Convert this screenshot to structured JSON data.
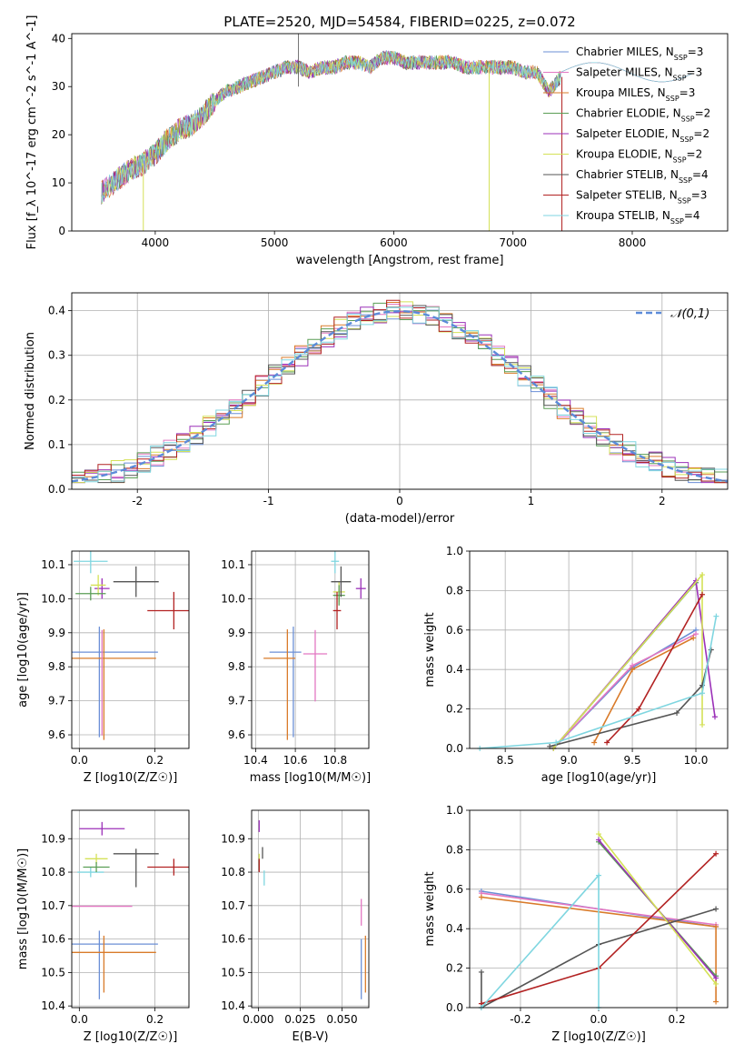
{
  "figure": {
    "title": "PLATE=2520, MJD=54584, FIBERID=0225, z=0.072"
  },
  "chart_data": [
    {
      "id": "spectrum",
      "type": "line",
      "xlabel": "wavelength [Angstrom, rest frame]",
      "ylabel": "Flux [f_λ 10^-17 erg cm^-2 s^-1 A^-1]",
      "xlim": [
        3300,
        8800
      ],
      "ylim": [
        0,
        41
      ],
      "xticks": [
        4000,
        5000,
        6000,
        7000,
        8000
      ],
      "yticks": [
        0,
        10,
        20,
        30,
        40
      ],
      "grid": false,
      "legend_position": "top-right",
      "continuum_x": [
        3550,
        3600,
        3700,
        3800,
        3900,
        4000,
        4100,
        4200,
        4300,
        4400,
        4500,
        4600,
        4700,
        4800,
        4900,
        5000,
        5100,
        5200,
        5300,
        5400,
        5500,
        5600,
        5700,
        5800,
        5900,
        6000,
        6100,
        6200,
        6300,
        6400,
        6500,
        6600,
        6700,
        6800,
        6900,
        7000,
        7100,
        7200,
        7300,
        7400
      ],
      "continuum_y": [
        8,
        9,
        11,
        13,
        14,
        16,
        19,
        21,
        22,
        24,
        27,
        29,
        30,
        31,
        32,
        33,
        34,
        34,
        33,
        34,
        34,
        35,
        35,
        34,
        36,
        36,
        35,
        35,
        35,
        35,
        35,
        34,
        34,
        34,
        34,
        34,
        33,
        33,
        29,
        32
      ],
      "series": [
        {
          "name": "Chabrier MILES, N_SSP=3",
          "color": "#6b8fd6"
        },
        {
          "name": "Salpeter MILES, N_SSP=3",
          "color": "#e377c2"
        },
        {
          "name": "Kroupa MILES, N_SSP=3",
          "color": "#d97b2a"
        },
        {
          "name": "Chabrier ELODIE, N_SSP=2",
          "color": "#5a9e55"
        },
        {
          "name": "Salpeter ELODIE, N_SSP=2",
          "color": "#9b30b8"
        },
        {
          "name": "Kroupa ELODIE, N_SSP=2",
          "color": "#d4e157"
        },
        {
          "name": "Chabrier STELIB, N_SSP=4",
          "color": "#555555"
        },
        {
          "name": "Salpeter STELIB, N_SSP=3",
          "color": "#b22222"
        },
        {
          "name": "Kroupa STELIB, N_SSP=4",
          "color": "#7fd6e0"
        }
      ]
    },
    {
      "id": "residuals",
      "type": "line",
      "xlabel": "(data-model)/error",
      "ylabel": "Normed distribution",
      "xlim": [
        -2.5,
        2.5
      ],
      "ylim": [
        0,
        0.44
      ],
      "xticks": [
        -2,
        -1,
        0,
        1,
        2
      ],
      "yticks": [
        0.0,
        0.1,
        0.2,
        0.3,
        0.4
      ],
      "grid": true,
      "legend_position": "top-right",
      "reference_curve": {
        "name": "𝒩(0,1)",
        "mean": 0,
        "sigma": 1,
        "color": "#5b8bd9"
      },
      "bin_width": 0.1
    },
    {
      "id": "age-vs-Z",
      "type": "scatter",
      "xlabel": "Z [log10(Z/Z☉)]",
      "ylabel": "age [log10(age/yr)]",
      "xlim": [
        -0.02,
        0.29
      ],
      "ylim": [
        9.56,
        10.14
      ],
      "xticks": [
        0.0,
        0.2
      ],
      "yticks": [
        9.6,
        9.7,
        9.8,
        9.9,
        10.0,
        10.1
      ],
      "grid": true,
      "points": [
        {
          "x": 0.053,
          "y": 9.843,
          "xerr": 0.155,
          "yerr": 0.075,
          "yerr_low": 0.25,
          "color": "#6b8fd6"
        },
        {
          "x": 0.065,
          "y": 9.825,
          "xerr": 0.138,
          "yerr": 0.085,
          "yerr_low": 0.24,
          "color": "#d97b2a"
        },
        {
          "x": 0.06,
          "y": 9.838,
          "xerr": 0.0,
          "yerr": 0.07,
          "yerr_low": 0.24,
          "color": "#e377c2"
        },
        {
          "x": 0.03,
          "y": 10.11,
          "xerr": 0.045,
          "yerr": 0.035,
          "color": "#7fd6e0"
        },
        {
          "x": 0.06,
          "y": 10.03,
          "xerr": 0.02,
          "yerr": 0.03,
          "color": "#9b30b8"
        },
        {
          "x": 0.05,
          "y": 10.04,
          "xerr": 0.02,
          "yerr": 0.03,
          "color": "#d4e157"
        },
        {
          "x": 0.03,
          "y": 10.015,
          "xerr": 0.04,
          "yerr": 0.02,
          "color": "#5a9e55"
        },
        {
          "x": 0.15,
          "y": 10.05,
          "xerr": 0.06,
          "yerr": 0.045,
          "color": "#555555"
        },
        {
          "x": 0.25,
          "y": 9.965,
          "xerr": 0.07,
          "yerr": 0.055,
          "color": "#b22222"
        }
      ]
    },
    {
      "id": "age-vs-mass",
      "type": "scatter",
      "xlabel": "mass [log10(M/M☉)]",
      "ylabel": "",
      "xlim": [
        10.38,
        10.97
      ],
      "ylim": [
        9.56,
        10.14
      ],
      "xticks": [
        10.4,
        10.6,
        10.8
      ],
      "yticks": [
        9.6,
        9.7,
        9.8,
        9.9,
        10.0,
        10.1
      ],
      "grid": true,
      "points": [
        {
          "x": 10.59,
          "y": 9.843,
          "xerr": 0.12,
          "xerr_high": 0.04,
          "yerr": 0.075,
          "yerr_low": 0.25,
          "color": "#6b8fd6"
        },
        {
          "x": 10.56,
          "y": 9.825,
          "xerr": 0.12,
          "xerr_high": 0.04,
          "yerr": 0.085,
          "yerr_low": 0.24,
          "color": "#d97b2a"
        },
        {
          "x": 10.7,
          "y": 9.838,
          "xerr": 0.06,
          "yerr": 0.07,
          "yerr_low": 0.14,
          "color": "#e377c2"
        },
        {
          "x": 10.8,
          "y": 10.11,
          "xerr": 0.02,
          "yerr": 0.035,
          "color": "#7fd6e0"
        },
        {
          "x": 10.93,
          "y": 10.03,
          "xerr": 0.025,
          "yerr": 0.03,
          "color": "#9b30b8"
        },
        {
          "x": 10.82,
          "y": 10.02,
          "xerr": 0.03,
          "yerr": 0.03,
          "color": "#d4e157"
        },
        {
          "x": 10.82,
          "y": 10.01,
          "xerr": 0.03,
          "yerr": 0.03,
          "color": "#5a9e55"
        },
        {
          "x": 10.83,
          "y": 10.05,
          "xerr": 0.05,
          "yerr": 0.045,
          "color": "#555555"
        },
        {
          "x": 10.81,
          "y": 9.965,
          "xerr": 0.02,
          "yerr": 0.055,
          "color": "#b22222"
        }
      ]
    },
    {
      "id": "mass-weight-vs-age",
      "type": "line",
      "xlabel": "age [log10(age/yr)]",
      "ylabel": "mass weight",
      "xlim": [
        8.22,
        10.25
      ],
      "ylim": [
        0,
        1.0
      ],
      "xticks": [
        8.5,
        9.0,
        9.5,
        10.0
      ],
      "yticks": [
        0.0,
        0.2,
        0.4,
        0.6,
        0.8,
        1.0
      ],
      "grid": true,
      "series": [
        {
          "color": "#6b8fd6",
          "x": [
            8.88,
            9.5,
            10.0
          ],
          "y": [
            0.0,
            0.41,
            0.6
          ]
        },
        {
          "color": "#e377c2",
          "x": [
            8.88,
            9.5,
            10.0
          ],
          "y": [
            0.0,
            0.42,
            0.58
          ]
        },
        {
          "color": "#d97b2a",
          "x": [
            9.2,
            9.5,
            9.98
          ],
          "y": [
            0.03,
            0.4,
            0.56
          ]
        },
        {
          "color": "#5a9e55",
          "x": [
            8.88,
            10.0
          ],
          "y": [
            0.0,
            0.84
          ]
        },
        {
          "color": "#9b30b8",
          "x": [
            8.88,
            10.0,
            10.15
          ],
          "y": [
            0.0,
            0.85,
            0.16
          ]
        },
        {
          "color": "#d4e157",
          "x": [
            8.88,
            10.05,
            10.05
          ],
          "y": [
            0.0,
            0.88,
            0.12
          ]
        },
        {
          "color": "#555555",
          "x": [
            8.85,
            9.85,
            10.05,
            10.12
          ],
          "y": [
            0.01,
            0.18,
            0.32,
            0.5
          ]
        },
        {
          "color": "#b22222",
          "x": [
            9.3,
            9.55,
            10.05
          ],
          "y": [
            0.03,
            0.2,
            0.78
          ]
        },
        {
          "color": "#7fd6e0",
          "x": [
            8.3,
            8.9,
            10.05,
            10.16
          ],
          "y": [
            0.0,
            0.03,
            0.28,
            0.67
          ]
        }
      ]
    },
    {
      "id": "mass-vs-Z",
      "type": "scatter",
      "xlabel": "Z [log10(Z/Z☉)]",
      "ylabel": "mass [log10(M/M☉)]",
      "xlim": [
        -0.02,
        0.29
      ],
      "ylim": [
        10.395,
        10.985
      ],
      "xticks": [
        0.0,
        0.2
      ],
      "yticks": [
        10.4,
        10.5,
        10.6,
        10.7,
        10.8,
        10.9
      ],
      "grid": true,
      "points": [
        {
          "x": 0.053,
          "y": 10.585,
          "xerr": 0.155,
          "yerr": 0.04,
          "yerr_low": 0.165,
          "color": "#6b8fd6"
        },
        {
          "x": 0.065,
          "y": 10.56,
          "xerr": 0.138,
          "yerr": 0.05,
          "yerr_low": 0.12,
          "color": "#d97b2a"
        },
        {
          "x": 0.06,
          "y": 10.698,
          "xerr": 0.08,
          "yerr": 0.0,
          "color": "#e377c2"
        },
        {
          "x": 0.03,
          "y": 10.8,
          "xerr": 0.035,
          "yerr": 0.015,
          "color": "#7fd6e0"
        },
        {
          "x": 0.06,
          "y": 10.93,
          "xerr": 0.06,
          "yerr": 0.02,
          "color": "#9b30b8"
        },
        {
          "x": 0.045,
          "y": 10.84,
          "xerr": 0.03,
          "yerr": 0.015,
          "color": "#d4e157"
        },
        {
          "x": 0.045,
          "y": 10.815,
          "xerr": 0.035,
          "yerr": 0.015,
          "color": "#5a9e55"
        },
        {
          "x": 0.15,
          "y": 10.855,
          "xerr": 0.06,
          "yerr": 0.015,
          "yerr_low": 0.1,
          "color": "#555555"
        },
        {
          "x": 0.25,
          "y": 10.815,
          "xerr": 0.07,
          "yerr": 0.025,
          "color": "#b22222"
        }
      ]
    },
    {
      "id": "mass-vs-EBV",
      "type": "scatter",
      "xlabel": "E(B-V)",
      "ylabel": "",
      "xlim": [
        -0.004,
        0.066
      ],
      "ylim": [
        10.395,
        10.985
      ],
      "xticks": [
        0.0,
        0.025,
        0.05
      ],
      "xticklabels": [
        "0.000",
        "0.025",
        "0.050"
      ],
      "yticks": [
        10.4,
        10.5,
        10.6,
        10.7,
        10.8,
        10.9
      ],
      "grid": true,
      "points": [
        {
          "x": 0.0615,
          "y": 10.56,
          "yerr": 0.04,
          "yerr_low": 0.14,
          "color": "#6b8fd6"
        },
        {
          "x": 0.064,
          "y": 10.52,
          "yerr": 0.09,
          "yerr_low": 0.08,
          "color": "#d97b2a"
        },
        {
          "x": 0.0615,
          "y": 10.64,
          "yerr": 0.08,
          "yerr_low": 0.0,
          "color": "#e377c2"
        },
        {
          "x": 0.0035,
          "y": 10.79,
          "yerr": 0.015,
          "yerr_low": 0.03,
          "color": "#7fd6e0"
        },
        {
          "x": 0.0005,
          "y": 10.93,
          "yerr": 0.025,
          "yerr_low": 0.01,
          "color": "#9b30b8"
        },
        {
          "x": 0.0005,
          "y": 10.84,
          "yerr": 0.015,
          "yerr_low": 0.02,
          "color": "#d4e157"
        },
        {
          "x": 0.0005,
          "y": 10.815,
          "yerr": 0.02,
          "yerr_low": 0.01,
          "color": "#5a9e55"
        },
        {
          "x": 0.0025,
          "y": 10.86,
          "yerr": 0.015,
          "yerr_low": 0.02,
          "color": "#555555"
        },
        {
          "x": 0.0005,
          "y": 10.82,
          "yerr": 0.02,
          "yerr_low": 0.02,
          "color": "#b22222"
        }
      ]
    },
    {
      "id": "mass-weight-vs-Z",
      "type": "line",
      "xlabel": "Z [log10(Z/Z☉)]",
      "ylabel": "mass weight",
      "xlim": [
        -0.33,
        0.33
      ],
      "ylim": [
        0,
        1.0
      ],
      "xticks": [
        -0.2,
        0.0,
        0.2
      ],
      "yticks": [
        0.0,
        0.2,
        0.4,
        0.6,
        0.8,
        1.0
      ],
      "grid": true,
      "series": [
        {
          "color": "#6b8fd6",
          "x": [
            -0.3,
            0.3
          ],
          "y": [
            0.59,
            0.41
          ]
        },
        {
          "color": "#e377c2",
          "x": [
            -0.3,
            0.3
          ],
          "y": [
            0.58,
            0.42
          ]
        },
        {
          "color": "#d97b2a",
          "x": [
            -0.3,
            0.3,
            0.3
          ],
          "y": [
            0.56,
            0.41,
            0.03
          ]
        },
        {
          "color": "#5a9e55",
          "x": [
            0.0,
            0.3
          ],
          "y": [
            0.84,
            0.16
          ]
        },
        {
          "color": "#9b30b8",
          "x": [
            0.0,
            0.3
          ],
          "y": [
            0.85,
            0.15
          ]
        },
        {
          "color": "#d4e157",
          "x": [
            0.0,
            0.3
          ],
          "y": [
            0.88,
            0.12
          ]
        },
        {
          "color": "#555555",
          "x": [
            -0.3,
            -0.3,
            0.0,
            0.3
          ],
          "y": [
            0.18,
            0.0,
            0.32,
            0.5
          ]
        },
        {
          "color": "#b22222",
          "x": [
            -0.3,
            0.0,
            0.3
          ],
          "y": [
            0.02,
            0.2,
            0.78
          ]
        },
        {
          "color": "#7fd6e0",
          "x": [
            -0.3,
            0.0,
            0.0
          ],
          "y": [
            0.0,
            0.67,
            0.0
          ]
        }
      ]
    }
  ]
}
